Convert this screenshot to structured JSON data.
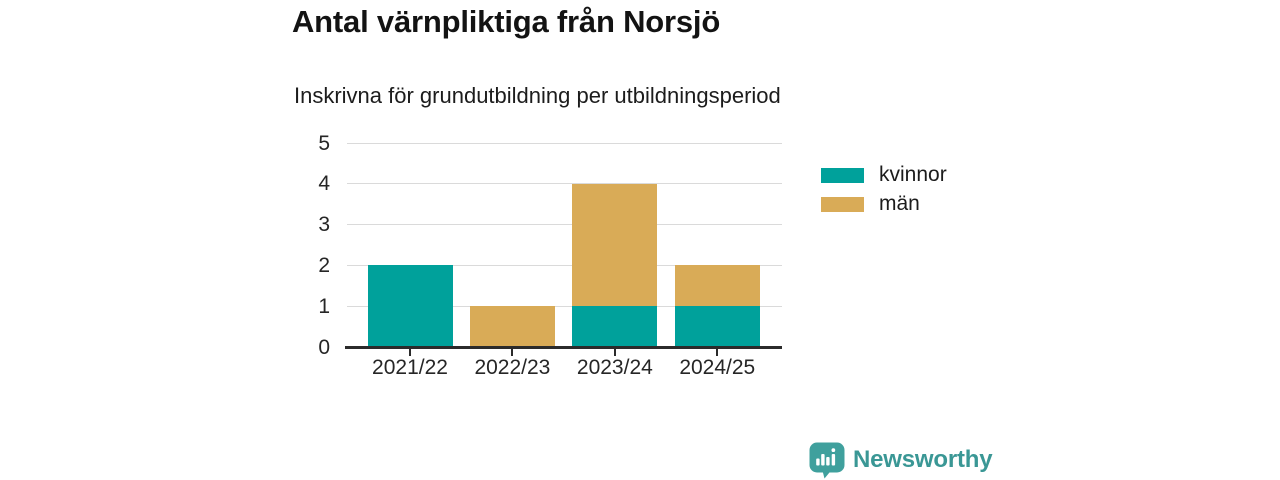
{
  "title": "Antal värnpliktiga från Norsjö",
  "subtitle": "Inskrivna för grundutbildning per utbildningsperiod",
  "branding": {
    "logo_icon": "bar-chart-speech-bubble",
    "logo_text": "Newsworthy"
  },
  "colors": {
    "kvinnor": "#00a19b",
    "man": "#d9ab57",
    "brand_icon": "#3fa09d",
    "brand_text": "#3a9795",
    "axis": "#2b2b2b",
    "gridline": "#dadada",
    "text_dark": "#1c1c1c"
  },
  "chart_data": {
    "type": "bar",
    "stacked": true,
    "title": "Antal värnpliktiga från Norsjö",
    "subtitle": "Inskrivna för grundutbildning per utbildningsperiod",
    "categories": [
      "2021/22",
      "2022/23",
      "2023/24",
      "2024/25"
    ],
    "series": [
      {
        "name": "kvinnor",
        "color": "#00a19b",
        "values": [
          2,
          0,
          1,
          1
        ]
      },
      {
        "name": "män",
        "color": "#d9ab57",
        "values": [
          0,
          1,
          3,
          1
        ]
      }
    ],
    "ylim": [
      0,
      5
    ],
    "yticks": [
      0,
      1,
      2,
      3,
      4,
      5
    ],
    "grid": true,
    "legend_position": "right",
    "xlabel": "",
    "ylabel": ""
  }
}
